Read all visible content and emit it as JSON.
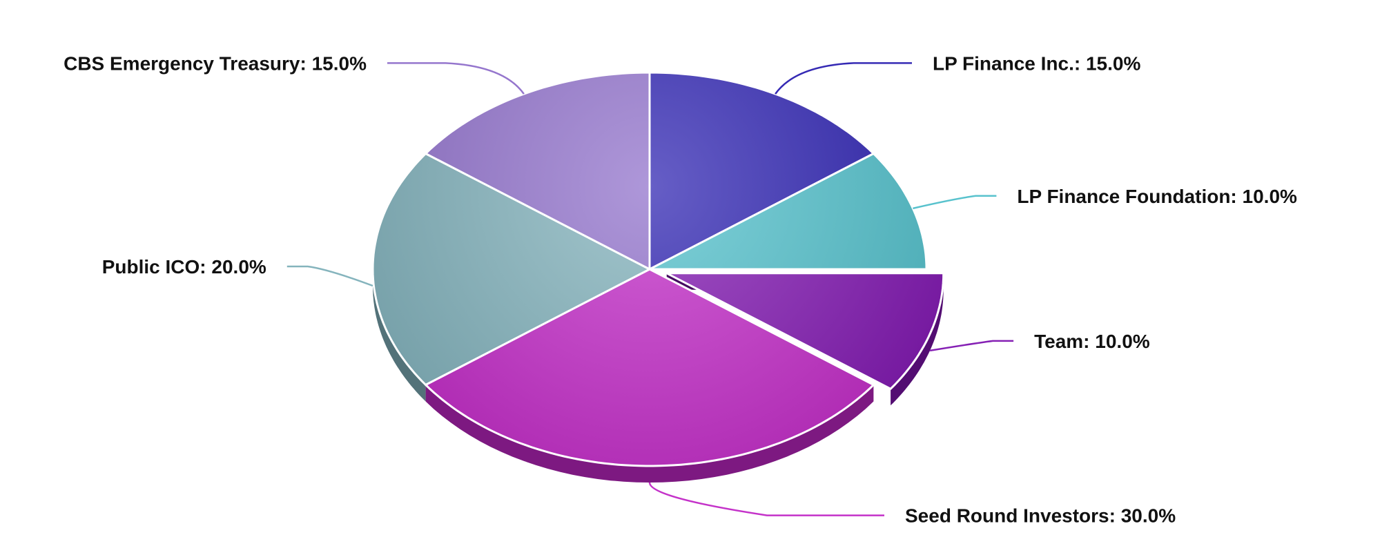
{
  "chart_data": {
    "type": "pie",
    "title": "",
    "slices": [
      {
        "name": "LP Finance Inc.",
        "value": 15.0,
        "label": "LP Finance Inc.: 15.0%",
        "color": "#2a1fb0",
        "exploded": false
      },
      {
        "name": "LP Finance Foundation",
        "value": 10.0,
        "label": "LP Finance Foundation: 10.0%",
        "color": "#4fbfca",
        "exploded": false
      },
      {
        "name": "Team",
        "value": 10.0,
        "label": "Team: 10.0%",
        "color": "#7f14b0",
        "exploded": true
      },
      {
        "name": "Seed Round Investors",
        "value": 30.0,
        "label": "Seed Round Investors: 30.0%",
        "color": "#c127c6",
        "exploded": false
      },
      {
        "name": "Public ICO",
        "value": 20.0,
        "label": "Public ICO: 20.0%",
        "color": "#7fb0ba",
        "exploded": false
      },
      {
        "name": "CBS Emergency Treasury",
        "value": 15.0,
        "label": "CBS Emergency Treasury: 15.0%",
        "color": "#8f6fca",
        "exploded": false
      }
    ],
    "legend": "none",
    "style": "3d-tilted"
  }
}
